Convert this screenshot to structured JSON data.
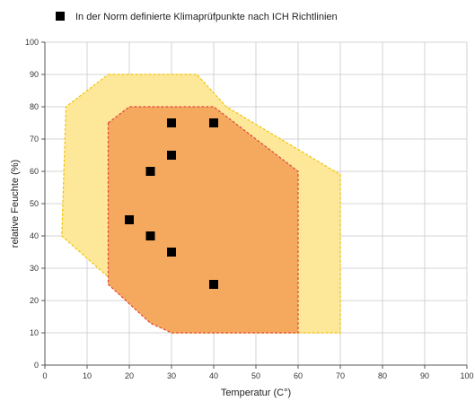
{
  "chart_data": {
    "type": "scatter",
    "title": "",
    "xlabel": "Temperatur (C°)",
    "ylabel": "relative Feuchte (%)",
    "xlim": [
      0,
      100
    ],
    "ylim": [
      0,
      100
    ],
    "x_ticks": [
      0,
      10,
      20,
      30,
      40,
      50,
      60,
      70,
      80,
      90,
      100
    ],
    "y_ticks": [
      0,
      10,
      20,
      30,
      40,
      50,
      60,
      70,
      80,
      90,
      100
    ],
    "grid": true,
    "legend": {
      "position": "top-left",
      "entries": [
        {
          "label": "In der Norm definierte Klimaprüfpunkte nach ICH Richtlinien",
          "marker": "square",
          "color": "#000000"
        }
      ]
    },
    "points": [
      {
        "x": 30,
        "y": 75
      },
      {
        "x": 40,
        "y": 75
      },
      {
        "x": 30,
        "y": 65
      },
      {
        "x": 25,
        "y": 60
      },
      {
        "x": 20,
        "y": 45
      },
      {
        "x": 25,
        "y": 40
      },
      {
        "x": 30,
        "y": 35
      },
      {
        "x": 40,
        "y": 25
      }
    ],
    "regions": [
      {
        "fill": "#fde89a",
        "stroke": "#f2c200",
        "polygon": [
          [
            15,
            90
          ],
          [
            36,
            90
          ],
          [
            43,
            80
          ],
          [
            70,
            59
          ],
          [
            70,
            10
          ],
          [
            30,
            10
          ],
          [
            4,
            40
          ],
          [
            5,
            80
          ]
        ]
      },
      {
        "fill": "#f4a95e",
        "stroke": "#e0463a",
        "polygon": [
          [
            15,
            75
          ],
          [
            20,
            80
          ],
          [
            40,
            80
          ],
          [
            60,
            60
          ],
          [
            60,
            10
          ],
          [
            30,
            10
          ],
          [
            25,
            13
          ],
          [
            15,
            25
          ]
        ]
      }
    ]
  }
}
